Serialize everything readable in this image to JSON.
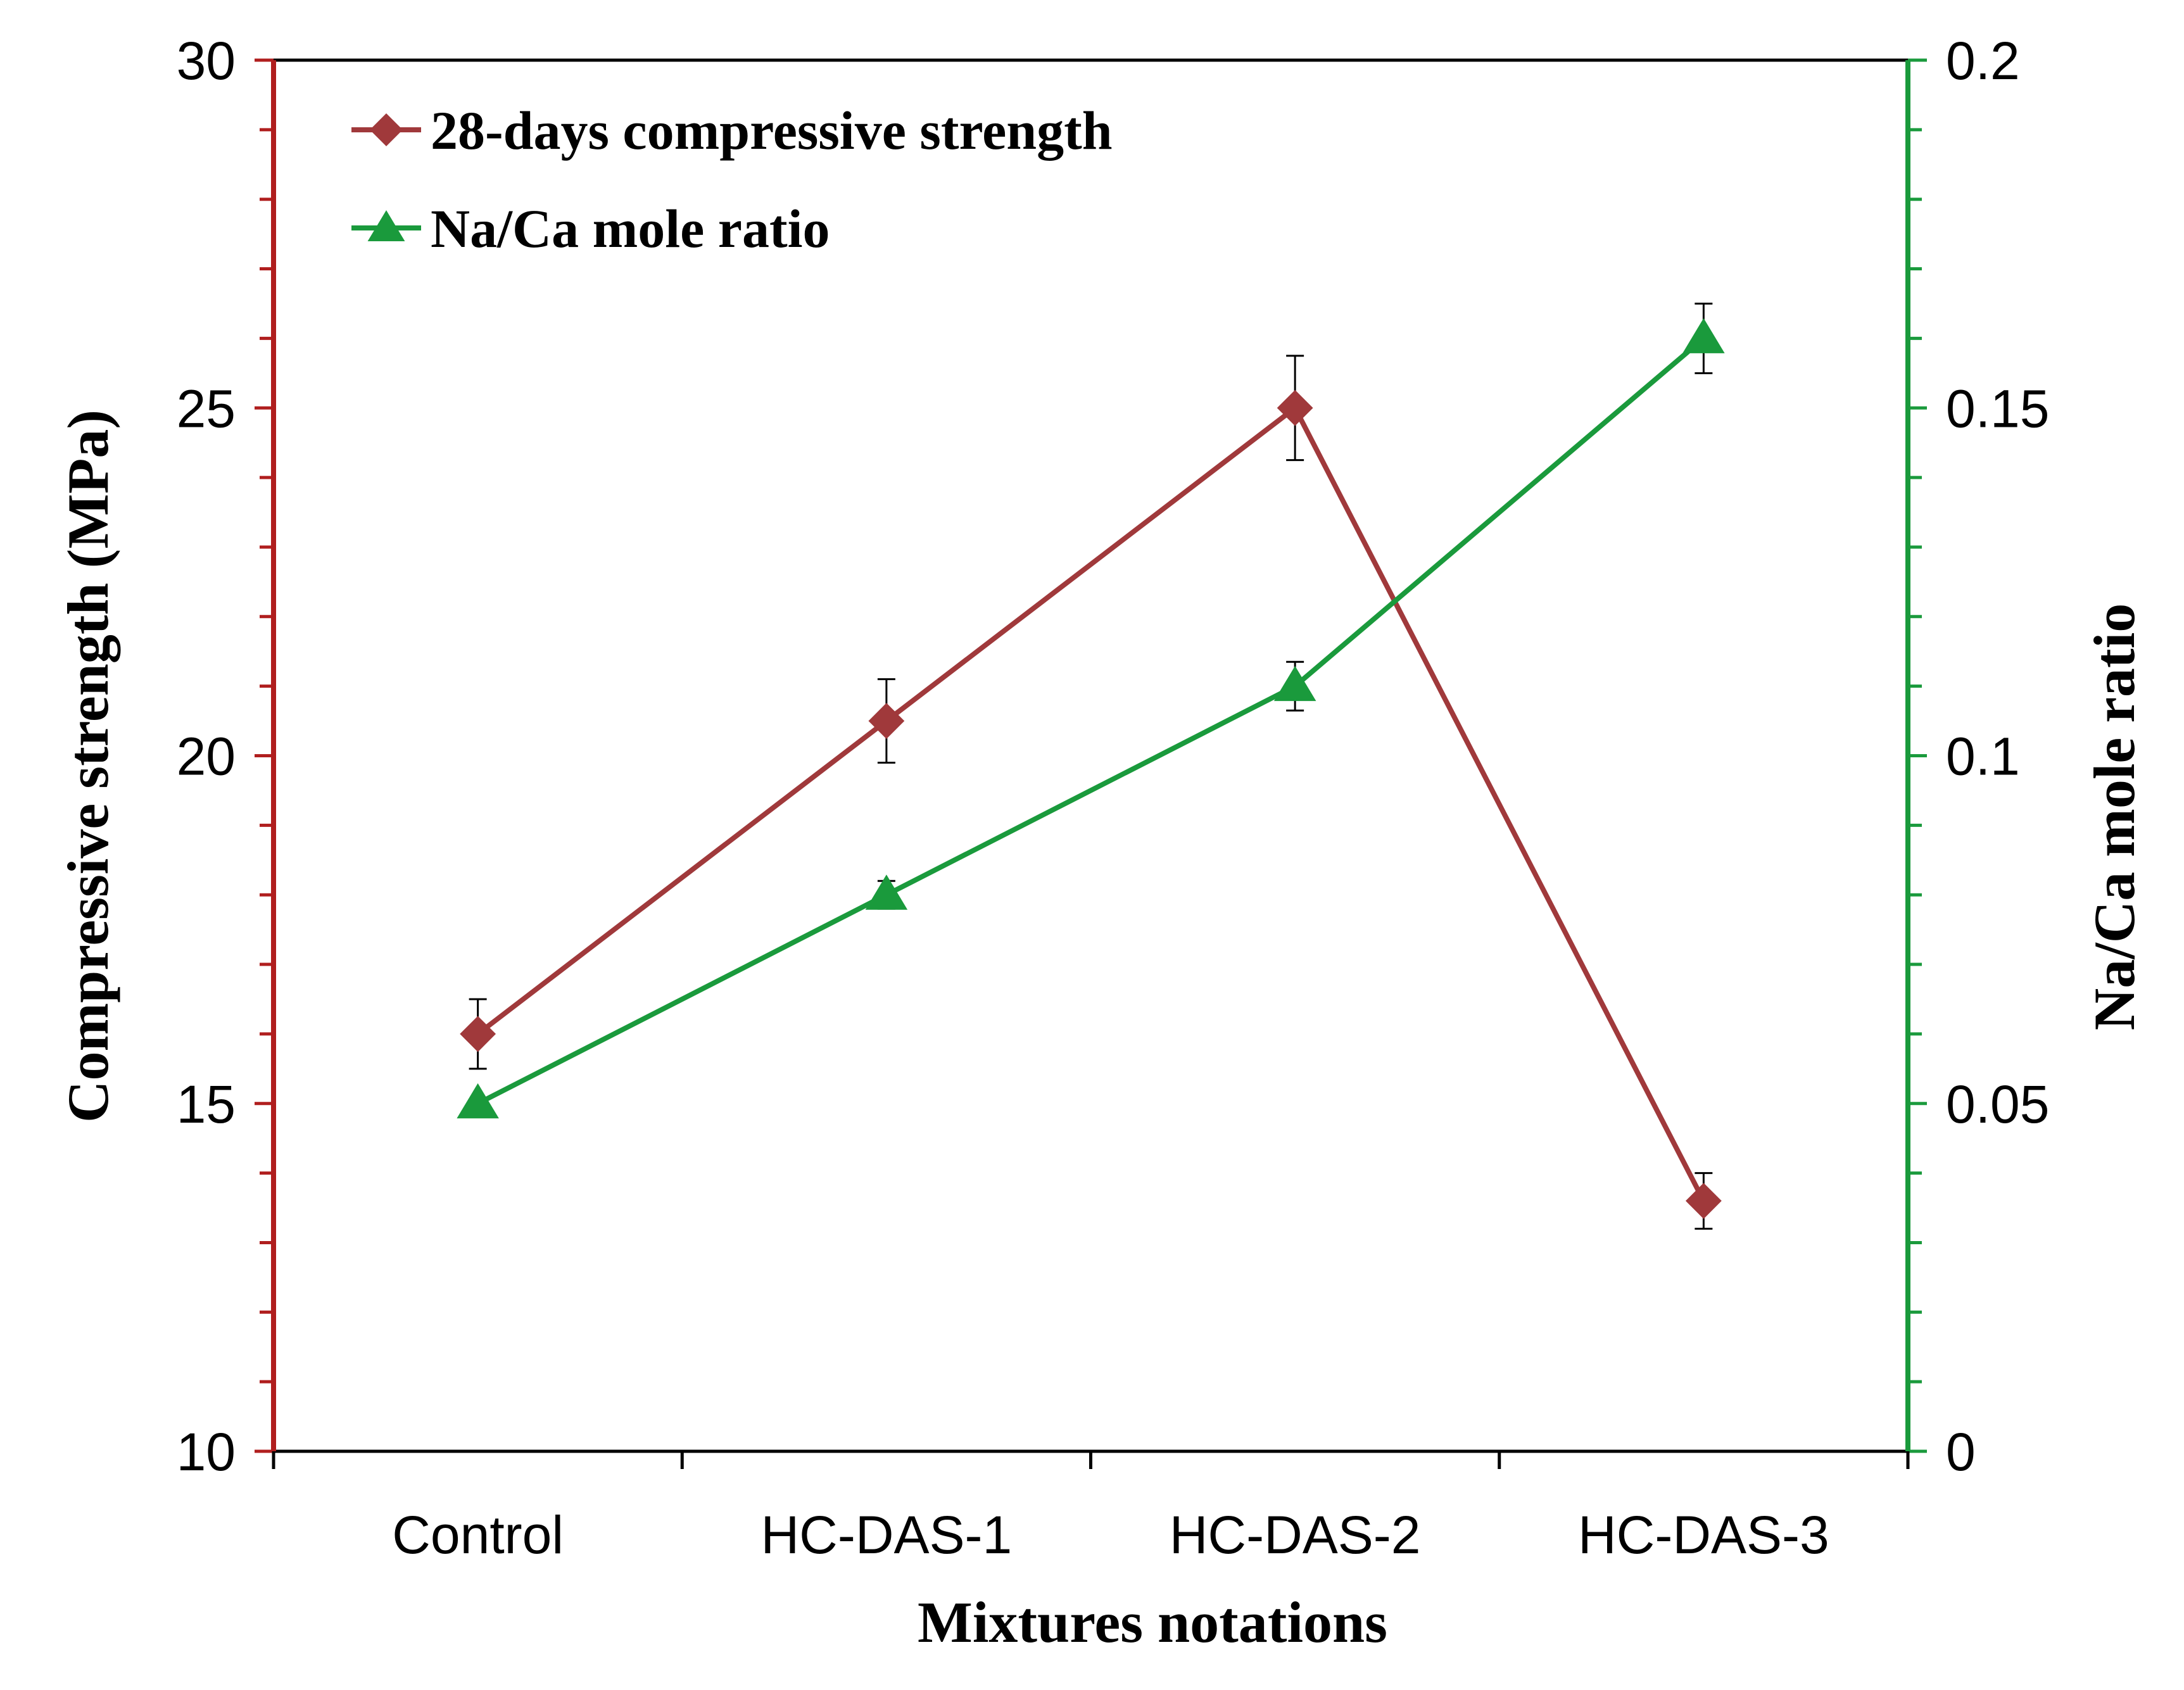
{
  "chart_data": {
    "type": "line",
    "title": "",
    "xlabel": "Mixtures notations",
    "ylabel": "Compressive strength (MPa)",
    "y2label": "Na/Ca mole ratio",
    "categories": [
      "Control",
      "HC-DAS-1",
      "HC-DAS-2",
      "HC-DAS-3"
    ],
    "ylim": [
      10,
      30
    ],
    "y2lim": [
      0,
      0.2
    ],
    "yticks": [
      "10",
      "15",
      "20",
      "25",
      "30"
    ],
    "y2ticks": [
      "0",
      "0.05",
      "0.1",
      "0.15",
      "0.2"
    ],
    "legend_position": "top-left",
    "grid": false,
    "series": [
      {
        "name": "28-days compressive strength",
        "axis": "left",
        "marker": "diamond",
        "color": "#a0393b",
        "values": [
          16.0,
          20.5,
          25.0,
          13.6
        ],
        "error": [
          0.5,
          0.6,
          0.75,
          0.4
        ]
      },
      {
        "name": "Na/Ca mole ratio",
        "axis": "right",
        "marker": "triangle",
        "color": "#1a9a3c",
        "values": [
          0.05,
          0.08,
          0.11,
          0.16
        ],
        "error": [
          0.0,
          0.002,
          0.0035,
          0.005
        ]
      }
    ],
    "left_axis_color": "#b01e1e",
    "right_axis_color": "#1a9a3c"
  }
}
